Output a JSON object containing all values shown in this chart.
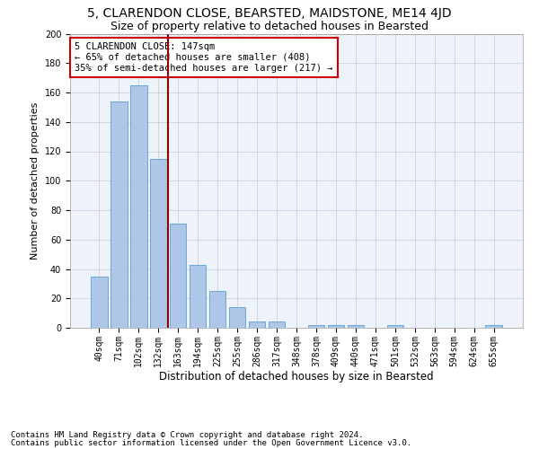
{
  "title1": "5, CLARENDON CLOSE, BEARSTED, MAIDSTONE, ME14 4JD",
  "title2": "Size of property relative to detached houses in Bearsted",
  "xlabel": "Distribution of detached houses by size in Bearsted",
  "ylabel": "Number of detached properties",
  "footnote1": "Contains HM Land Registry data © Crown copyright and database right 2024.",
  "footnote2": "Contains public sector information licensed under the Open Government Licence v3.0.",
  "bar_labels": [
    "40sqm",
    "71sqm",
    "102sqm",
    "132sqm",
    "163sqm",
    "194sqm",
    "225sqm",
    "255sqm",
    "286sqm",
    "317sqm",
    "348sqm",
    "378sqm",
    "409sqm",
    "440sqm",
    "471sqm",
    "501sqm",
    "532sqm",
    "563sqm",
    "594sqm",
    "624sqm",
    "655sqm"
  ],
  "bar_values": [
    35,
    154,
    165,
    115,
    71,
    43,
    25,
    14,
    4,
    4,
    0,
    2,
    2,
    2,
    0,
    2,
    0,
    0,
    0,
    0,
    2
  ],
  "bar_color": "#aec6e8",
  "bar_edgecolor": "#5a9fd4",
  "vline_x": 3.5,
  "vline_color": "#8b0000",
  "ylim": [
    0,
    200
  ],
  "yticks": [
    0,
    20,
    40,
    60,
    80,
    100,
    120,
    140,
    160,
    180,
    200
  ],
  "annotation_text": "5 CLARENDON CLOSE: 147sqm\n← 65% of detached houses are smaller (408)\n35% of semi-detached houses are larger (217) →",
  "annotation_box_color": "#ffffff",
  "annotation_box_edgecolor": "#cc0000",
  "bg_color": "#eef3fa",
  "fig_bg_color": "#ffffff",
  "title1_fontsize": 10,
  "title2_fontsize": 9,
  "xlabel_fontsize": 8.5,
  "ylabel_fontsize": 8,
  "annotation_fontsize": 7.5,
  "footnote_fontsize": 6.5,
  "tick_fontsize": 7
}
